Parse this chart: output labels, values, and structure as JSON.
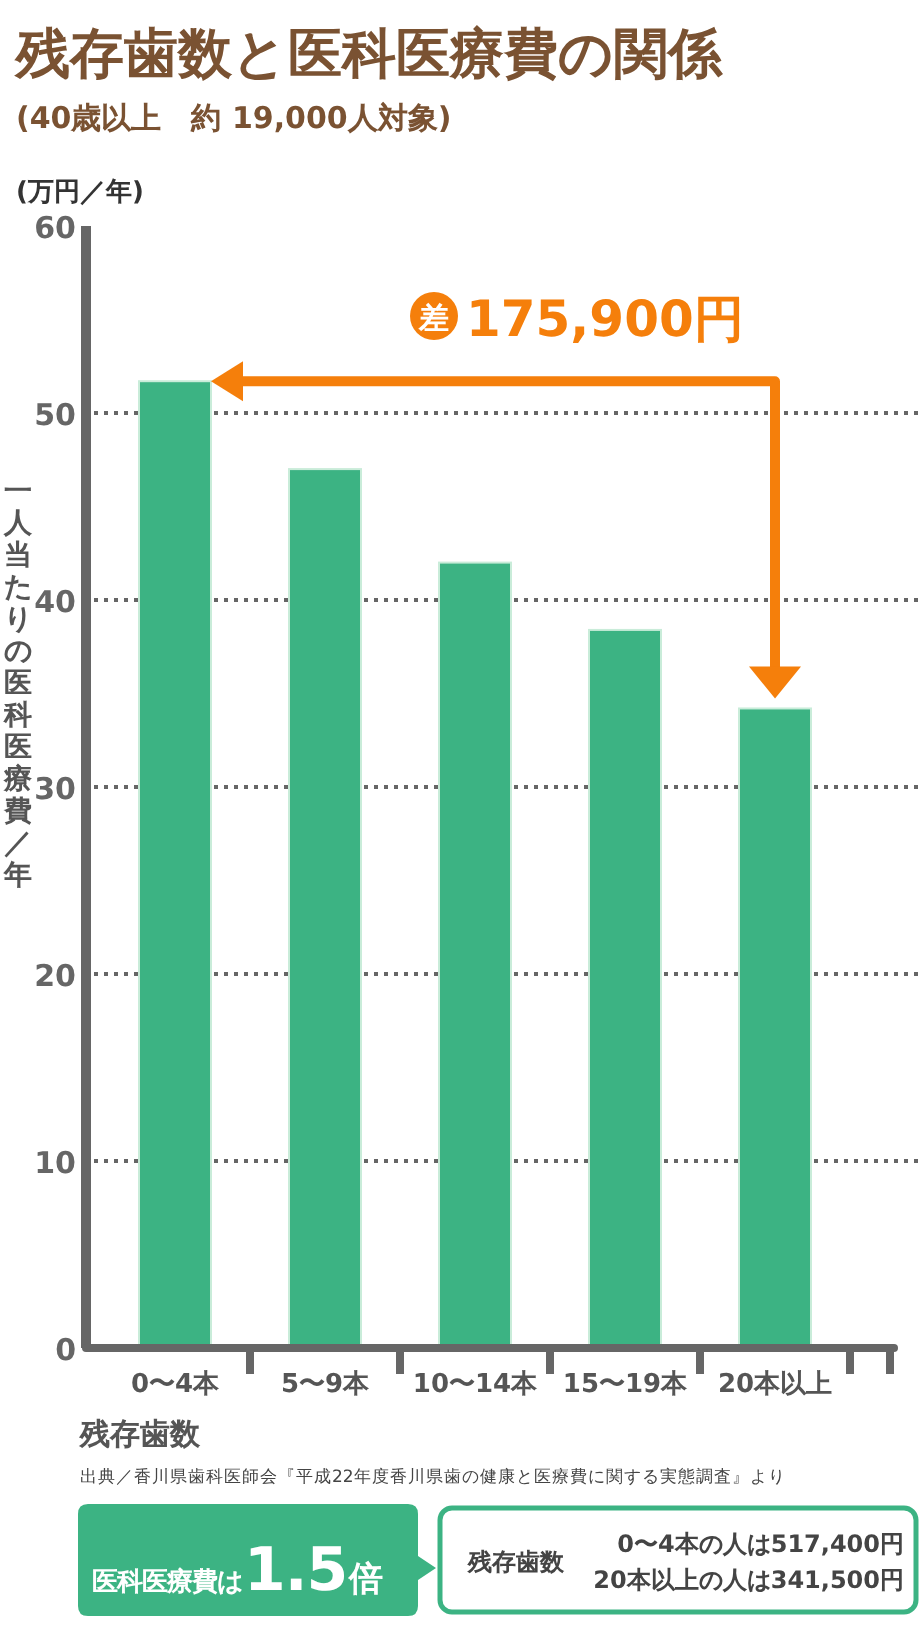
{
  "chart_data": {
    "type": "bar",
    "title": "残存歯数と医科医療費の関係",
    "subtitle": "(40歳以上　約 19,000人対象)",
    "ylabel": "一人当たりの医科医療費／年",
    "xlabel": "残存歯数",
    "categories": [
      "0〜4本",
      "5〜9本",
      "10〜14本",
      "15〜19本",
      "20本以上"
    ],
    "values": [
      51.7,
      47.0,
      42.0,
      38.4,
      34.2
    ],
    "color": "#3cb383",
    "ylim": [
      0,
      60
    ],
    "yticks": [
      0,
      10,
      20,
      30,
      40,
      50,
      60
    ],
    "grid": "y",
    "annotations": [
      "(万円／年)",
      "差",
      "175,900円",
      "出典／香川県歯科医師会『平成22年度香川県歯の健康と医療費に関する実態調査』より",
      "医科医療費は",
      "1.5",
      "倍",
      "残存歯数",
      "0〜4本の人は517,400円",
      "20本以上の人は341,500円"
    ]
  }
}
